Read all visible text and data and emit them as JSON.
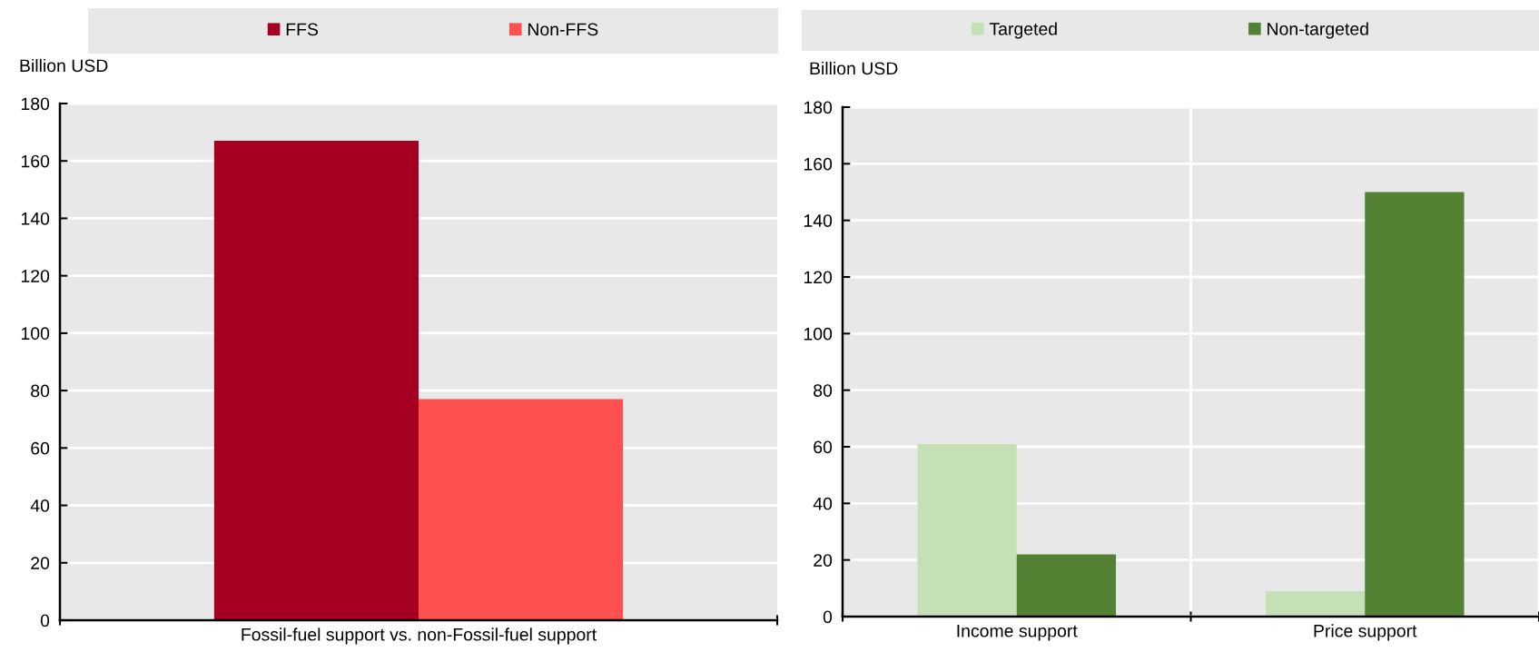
{
  "chart_data": [
    {
      "type": "bar",
      "categories": [
        "Fossil-fuel support vs. non-Fossil-fuel support"
      ],
      "series": [
        {
          "name": "FFS",
          "color": "#a50021",
          "values": [
            167
          ]
        },
        {
          "name": "Non-FFS",
          "color": "#ff5050",
          "values": [
            77
          ]
        }
      ],
      "ylabel": "Billion USD",
      "ylim": [
        0,
        180
      ],
      "yticks": [
        0,
        20,
        40,
        60,
        80,
        100,
        120,
        140,
        160,
        180
      ],
      "grid": "y",
      "legend": "top"
    },
    {
      "type": "bar",
      "categories": [
        "Income support",
        "Price support"
      ],
      "series": [
        {
          "name": "Targeted",
          "color": "#c5e0b4",
          "values": [
            61,
            9
          ]
        },
        {
          "name": "Non-targeted",
          "color": "#548235",
          "values": [
            22,
            150
          ]
        }
      ],
      "ylabel": "Billion USD",
      "ylim": [
        0,
        180
      ],
      "yticks": [
        0,
        20,
        40,
        60,
        80,
        100,
        120,
        140,
        160,
        180
      ],
      "grid": true,
      "legend": "top"
    }
  ]
}
